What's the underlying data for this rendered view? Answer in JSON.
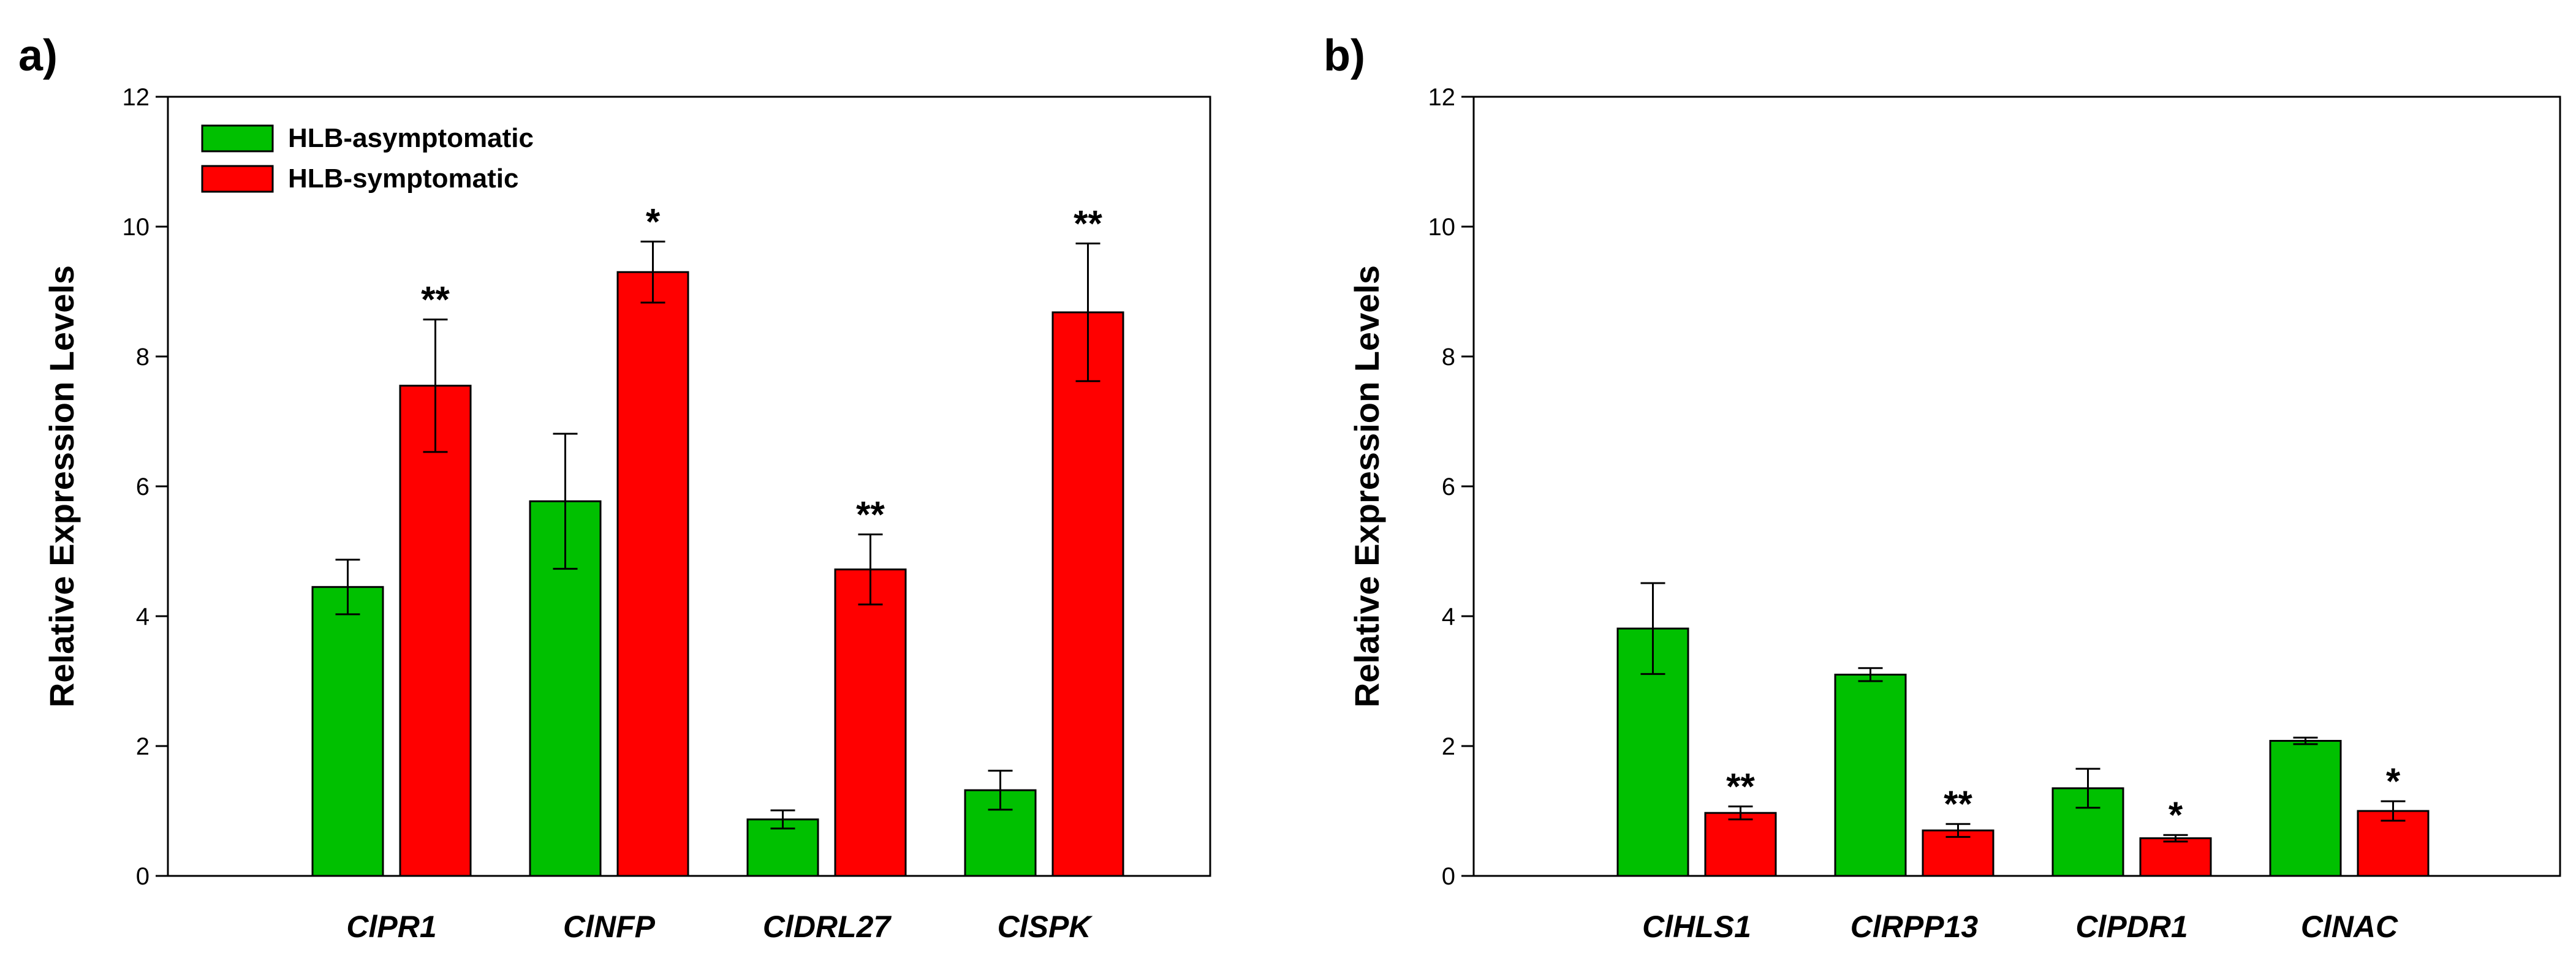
{
  "legend": {
    "placement": "top-left",
    "entries": [
      {
        "label": "HLB-asymptomatic",
        "color": "#00c000"
      },
      {
        "label": "HLB-symptomatic",
        "color": "#ff0000"
      }
    ]
  },
  "chart_data": [
    {
      "type": "bar",
      "panel_label": "a)",
      "categories": [
        "ClPR1",
        "ClNFP",
        "ClDRL27",
        "ClSPK"
      ],
      "ylabel": "Relative Expression Levels",
      "ylim": [
        0,
        12
      ],
      "yticks": [
        0,
        2,
        4,
        6,
        8,
        10,
        12
      ],
      "series": [
        {
          "name": "HLB-asymptomatic",
          "color": "#00c000",
          "values": [
            4.45,
            5.77,
            0.87,
            1.32
          ],
          "errors": [
            0.42,
            1.04,
            0.14,
            0.3
          ],
          "significance": [
            "",
            "",
            "",
            ""
          ]
        },
        {
          "name": "HLB-symptomatic",
          "color": "#ff0000",
          "values": [
            7.55,
            9.3,
            4.72,
            8.68
          ],
          "errors": [
            1.02,
            0.47,
            0.54,
            1.06
          ],
          "significance": [
            "**",
            "*",
            "**",
            "**"
          ]
        }
      ]
    },
    {
      "type": "bar",
      "panel_label": "b)",
      "categories": [
        "ClHLS1",
        "ClRPP13",
        "ClPDR1",
        "ClNAC"
      ],
      "ylabel": "Relative Expression Levels",
      "ylim": [
        0,
        12
      ],
      "yticks": [
        0,
        2,
        4,
        6,
        8,
        10,
        12
      ],
      "series": [
        {
          "name": "HLB-asymptomatic",
          "color": "#00c000",
          "values": [
            3.81,
            3.1,
            1.35,
            2.08
          ],
          "errors": [
            0.7,
            0.1,
            0.3,
            0.05
          ],
          "significance": [
            "",
            "",
            "",
            ""
          ]
        },
        {
          "name": "HLB-symptomatic",
          "color": "#ff0000",
          "values": [
            0.97,
            0.7,
            0.58,
            1.0
          ],
          "errors": [
            0.1,
            0.1,
            0.05,
            0.15
          ],
          "significance": [
            "**",
            "**",
            "*",
            "*"
          ]
        }
      ]
    }
  ]
}
